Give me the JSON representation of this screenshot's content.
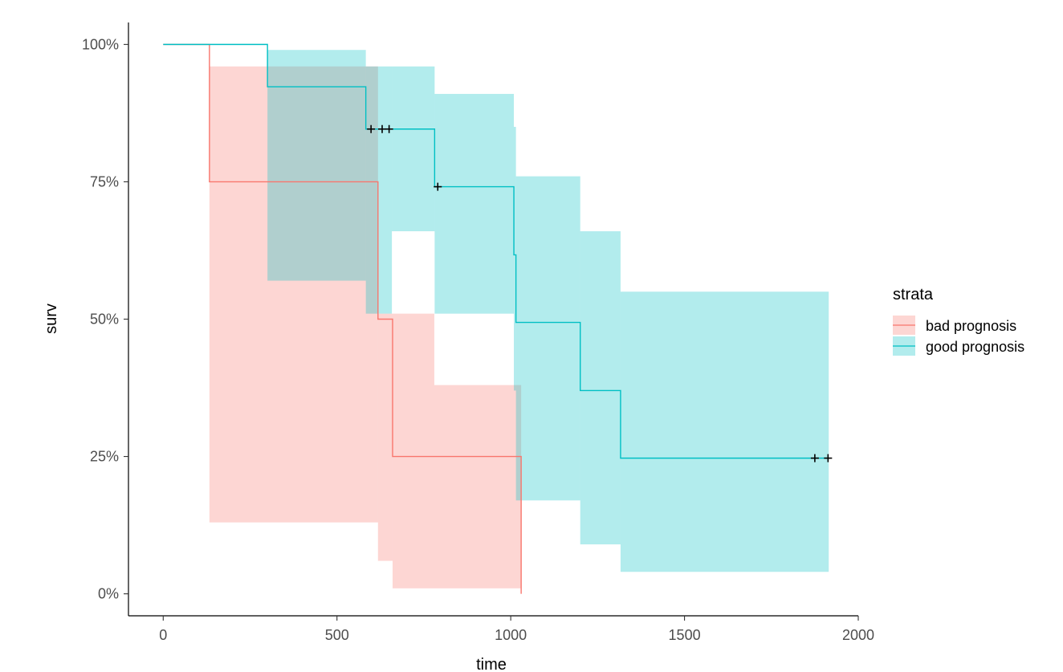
{
  "chart_data": {
    "type": "line",
    "subtype": "kaplan-meier-step",
    "xlabel": "time",
    "ylabel": "surv",
    "xlim": [
      -100,
      2000
    ],
    "ylim": [
      -0.04,
      1.04
    ],
    "x_ticks": [
      0,
      500,
      1000,
      1500,
      2000
    ],
    "x_tick_labels": [
      "0",
      "500",
      "1000",
      "1500",
      "2000"
    ],
    "y_ticks": [
      0,
      0.25,
      0.5,
      0.75,
      1.0
    ],
    "y_tick_labels": [
      "0%",
      "25%",
      "50%",
      "75%",
      "100%"
    ],
    "grid": false,
    "legend": {
      "title": "strata",
      "position": "right"
    },
    "series": [
      {
        "name": "bad prognosis",
        "color": "#F8766D",
        "fill_color": "#F8766D",
        "fill_opacity": 0.3,
        "steps": [
          [
            0,
            1.0
          ],
          [
            133,
            0.75
          ],
          [
            618,
            0.5
          ],
          [
            660,
            0.25
          ],
          [
            1030,
            0.0
          ]
        ],
        "ci_bands": [
          {
            "x0": 133,
            "x1": 618,
            "lower": 0.13,
            "upper": 0.96
          },
          {
            "x0": 618,
            "x1": 660,
            "lower": 0.06,
            "upper": 0.51
          },
          {
            "x0": 660,
            "x1": 780,
            "lower": 0.01,
            "upper": 0.51
          },
          {
            "x0": 780,
            "x1": 1030,
            "lower": 0.01,
            "upper": 0.38
          }
        ],
        "censored": []
      },
      {
        "name": "good prognosis",
        "color": "#00BFC4",
        "fill_color": "#00BFC4",
        "fill_opacity": 0.3,
        "steps": [
          [
            0,
            1.0
          ],
          [
            300,
            0.923
          ],
          [
            583,
            0.846
          ],
          [
            781,
            0.741
          ],
          [
            1009,
            0.617
          ],
          [
            1015,
            0.494
          ],
          [
            1200,
            0.37
          ],
          [
            1316,
            0.247
          ],
          [
            1915,
            0.247
          ]
        ],
        "ci_bands": [
          {
            "x0": 300,
            "x1": 583,
            "lower": 0.57,
            "upper": 0.99
          },
          {
            "x0": 583,
            "x1": 658,
            "lower": 0.51,
            "upper": 0.96
          },
          {
            "x0": 658,
            "x1": 781,
            "lower": 0.66,
            "upper": 0.96
          },
          {
            "x0": 781,
            "x1": 1009,
            "lower": 0.51,
            "upper": 0.91
          },
          {
            "x0": 1009,
            "x1": 1015,
            "lower": 0.37,
            "upper": 0.85
          },
          {
            "x0": 1015,
            "x1": 1200,
            "lower": 0.17,
            "upper": 0.76
          },
          {
            "x0": 1200,
            "x1": 1316,
            "lower": 0.09,
            "upper": 0.66
          },
          {
            "x0": 1316,
            "x1": 1915,
            "lower": 0.04,
            "upper": 0.55
          }
        ],
        "censored": [
          [
            598,
            0.846
          ],
          [
            630,
            0.846
          ],
          [
            650,
            0.846
          ],
          [
            790,
            0.741
          ],
          [
            1875,
            0.247
          ],
          [
            1913,
            0.247
          ]
        ]
      }
    ]
  }
}
